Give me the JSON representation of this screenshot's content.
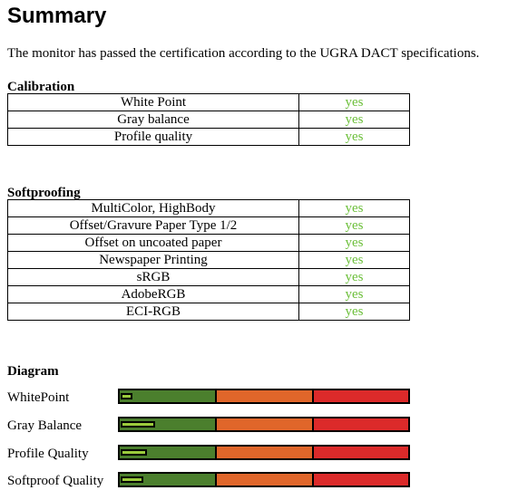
{
  "title": "Summary",
  "intro": "The monitor has passed the certification according to the UGRA DACT specifications.",
  "calibration": {
    "heading": "Calibration",
    "rows": [
      {
        "name": "White Point",
        "value": "yes"
      },
      {
        "name": "Gray balance",
        "value": "yes"
      },
      {
        "name": "Profile quality",
        "value": "yes"
      }
    ]
  },
  "softproofing": {
    "heading": "Softproofing",
    "rows": [
      {
        "name": "MultiColor, HighBody",
        "value": "yes"
      },
      {
        "name": "Offset/Gravure Paper Type 1/2",
        "value": "yes"
      },
      {
        "name": "Offset on uncoated paper",
        "value": "yes"
      },
      {
        "name": "Newspaper Printing",
        "value": "yes"
      },
      {
        "name": "sRGB",
        "value": "yes"
      },
      {
        "name": "AdobeRGB",
        "value": "yes"
      },
      {
        "name": "ECI-RGB",
        "value": "yes"
      }
    ]
  },
  "diagram": {
    "heading": "Diagram",
    "bars": [
      {
        "label": "WhitePoint",
        "level": 0.04
      },
      {
        "label": "Gray Balance",
        "level": 0.12
      },
      {
        "label": "Profile Quality",
        "level": 0.09
      },
      {
        "label": "Softproof Quality",
        "level": 0.08
      }
    ]
  },
  "colors": {
    "yes_text": "#6cbf3a",
    "zone_green": "#4b7f2d",
    "zone_orange": "#e0662a",
    "zone_red": "#dc2a2a",
    "marker": "#9bcb3c"
  }
}
